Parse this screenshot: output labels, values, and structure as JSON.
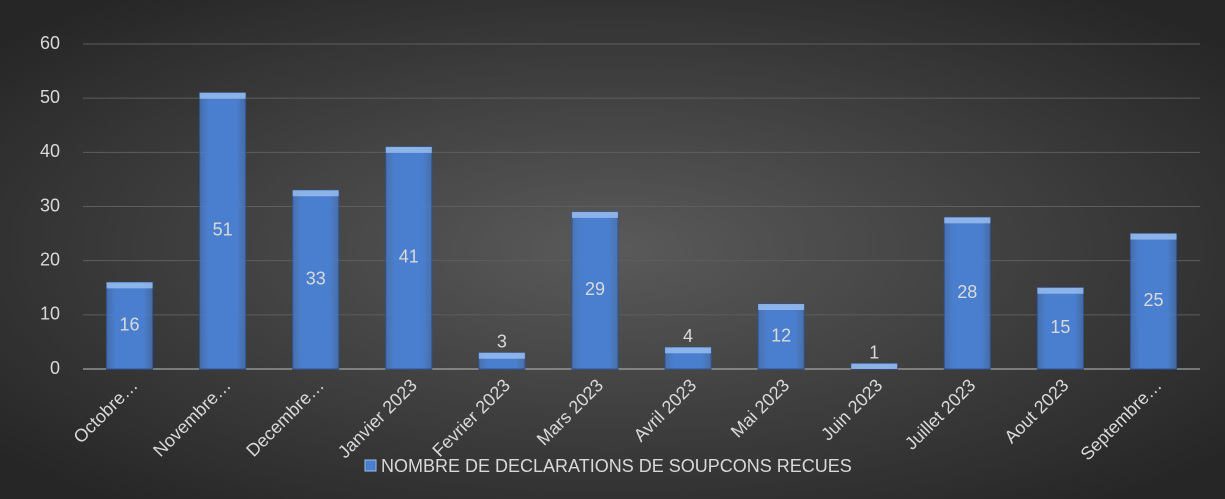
{
  "chart_data": {
    "type": "bar",
    "categories": [
      "Octobre…",
      "Novembre…",
      "Decembre…",
      "Janvier 2023",
      "Fevrier 2023",
      "Mars 2023",
      "Avril 2023",
      "Mai 2023",
      "Juin 2023",
      "Juillet 2023",
      "Aout 2023",
      "Septembre…"
    ],
    "series": [
      {
        "name": "NOMBRE DE DECLARATIONS DE SOUPCONS RECUES",
        "color": "#4a7fcf",
        "values": [
          16,
          51,
          33,
          41,
          3,
          29,
          4,
          12,
          1,
          28,
          15,
          25
        ]
      }
    ],
    "ylim": [
      0,
      60
    ],
    "yticks": [
      0,
      10,
      20,
      30,
      40,
      50,
      60
    ],
    "grid": true,
    "legend": "bottom"
  }
}
